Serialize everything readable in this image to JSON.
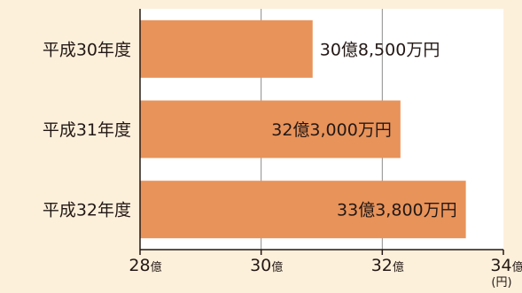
{
  "chart_data": {
    "type": "bar",
    "orientation": "horizontal",
    "categories": [
      "平成30年度",
      "平成31年度",
      "平成32年度"
    ],
    "values": [
      30.85,
      32.3,
      33.38
    ],
    "data_labels": [
      "30億8,500万円",
      "32億3,000万円",
      "33億3,800万円"
    ],
    "xlim": [
      28,
      34
    ],
    "x_ticks": [
      28,
      30,
      32,
      34
    ],
    "x_tick_labels": [
      {
        "num": "28",
        "unit": "億"
      },
      {
        "num": "30",
        "unit": "億"
      },
      {
        "num": "32",
        "unit": "億"
      },
      {
        "num": "34",
        "unit": "億"
      }
    ],
    "x_unit": "(円)",
    "grid": true,
    "colors": {
      "background": "#fdf0db",
      "plot_background": "#ffffff",
      "bar": "#e8935a",
      "grid": "#8c8c8c",
      "text": "#231815"
    }
  }
}
